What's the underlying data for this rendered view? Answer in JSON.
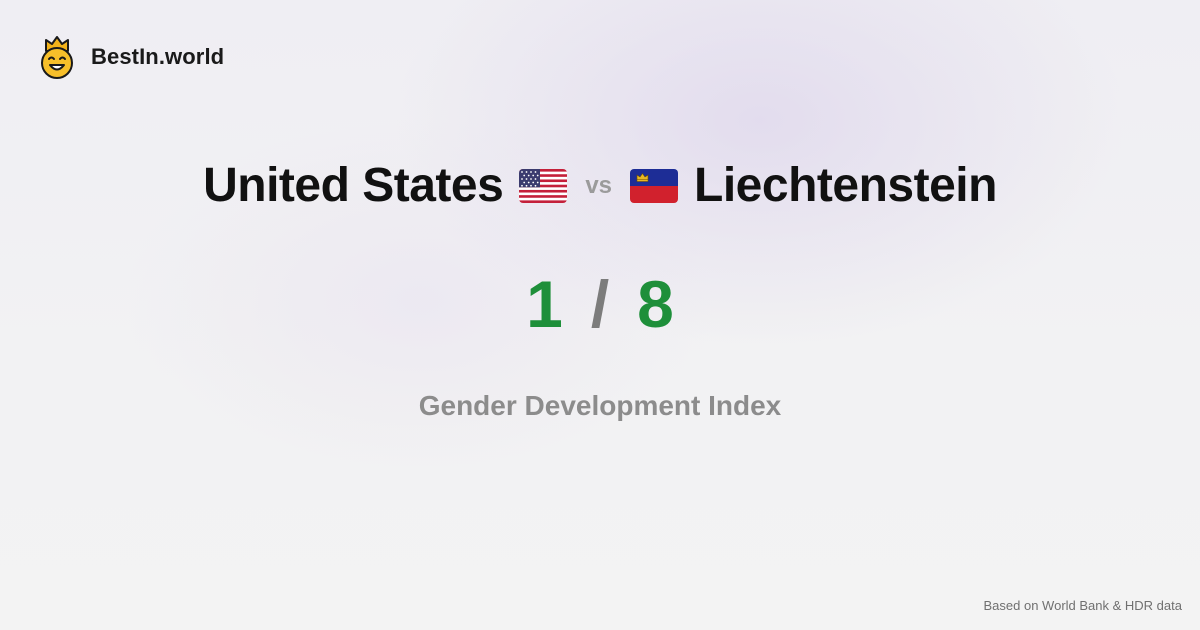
{
  "brand": {
    "name": "BestIn.world",
    "logo_icon": "smiling-crown-face-icon"
  },
  "comparison": {
    "left": {
      "name": "United States",
      "flag_icon": "us-flag-icon",
      "rank": "1"
    },
    "separator": "vs",
    "right": {
      "name": "Liechtenstein",
      "flag_icon": "liechtenstein-flag-icon",
      "rank": "8"
    },
    "rank_separator": "/"
  },
  "metric": {
    "label": "Gender Development Index"
  },
  "footer": {
    "source": "Based on World Bank & HDR data"
  },
  "colors": {
    "background": "#f1f0f3",
    "rank": "#1e8f3a",
    "muted": "#8c8c8c",
    "text": "#111111"
  }
}
